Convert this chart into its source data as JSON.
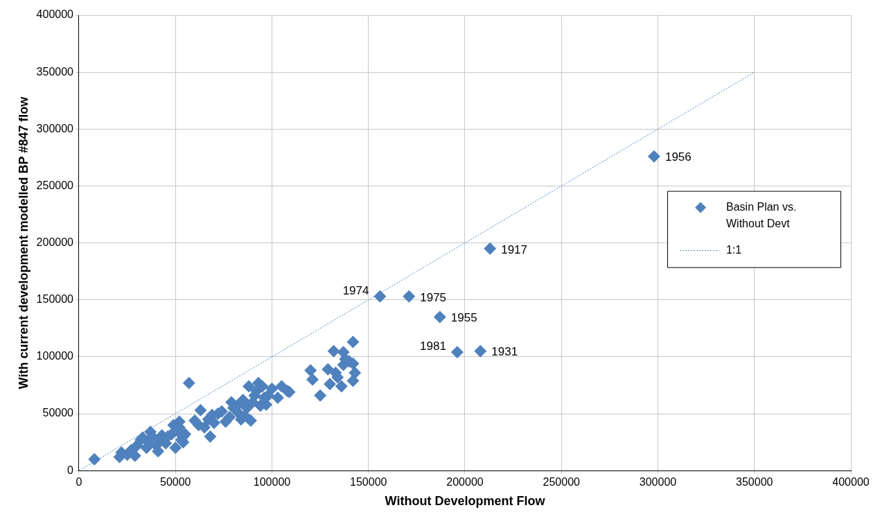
{
  "chart_data": {
    "type": "scatter",
    "xlabel": "Without Development Flow",
    "ylabel": "With current development modelled BP #847 flow",
    "xlim": [
      0,
      400000
    ],
    "xticks": [
      0,
      50000,
      100000,
      150000,
      200000,
      250000,
      300000,
      350000,
      400000
    ],
    "ylim": [
      0,
      400000
    ],
    "yticks": [
      0,
      50000,
      100000,
      150000,
      200000,
      250000,
      300000,
      350000,
      400000
    ],
    "grid": true,
    "legend": "right",
    "marker": "diamond",
    "series": [
      {
        "name": "Basin Plan vs. Without Devt",
        "color": "#4f81bd",
        "x": [
          8000,
          21000,
          22000,
          25000,
          27000,
          29000,
          30000,
          32000,
          33000,
          35000,
          36000,
          37000,
          38000,
          40000,
          41000,
          42000,
          43000,
          45000,
          46000,
          48000,
          49000,
          50000,
          51000,
          52000,
          53000,
          54000,
          55000,
          52000,
          54000,
          57000,
          60000,
          62000,
          63000,
          65000,
          67000,
          68000,
          69000,
          70000,
          72000,
          74000,
          76000,
          78000,
          79000,
          80000,
          82000,
          83000,
          84000,
          85000,
          86000,
          87000,
          88000,
          89000,
          90000,
          91000,
          92000,
          93000,
          94000,
          95000,
          96000,
          97000,
          98000,
          100000,
          103000,
          105000,
          108000,
          109000,
          120000,
          121000,
          125000,
          129000,
          130000,
          132000,
          133000,
          134000,
          136000,
          137000,
          137000,
          138000,
          140000,
          142000,
          142000,
          142000,
          143000,
          156000,
          171000,
          187000,
          196000,
          208000,
          213000,
          298000
        ],
        "values": [
          10000,
          12000,
          16000,
          14000,
          18000,
          13000,
          22000,
          27000,
          29000,
          20000,
          25000,
          34000,
          30000,
          22000,
          17000,
          27000,
          31000,
          24000,
          30000,
          32000,
          40000,
          20000,
          35000,
          43000,
          27000,
          25000,
          32000,
          38000,
          30000,
          77000,
          44000,
          40000,
          53000,
          38000,
          45000,
          30000,
          49000,
          42000,
          50000,
          52000,
          43000,
          47000,
          60000,
          55000,
          57000,
          50000,
          45000,
          62000,
          48000,
          55000,
          74000,
          44000,
          60000,
          66000,
          70000,
          77000,
          57000,
          74000,
          64000,
          58000,
          66000,
          72000,
          64000,
          74000,
          70000,
          69000,
          88000,
          80000,
          66000,
          89000,
          76000,
          105000,
          86000,
          82000,
          74000,
          104000,
          93000,
          98000,
          96000,
          79000,
          94000,
          113000,
          86000,
          153000,
          153000,
          135000,
          104000,
          105000,
          195000,
          276000
        ]
      },
      {
        "name": "1:1",
        "type": "line",
        "color": "#4f81bd",
        "marker": "none",
        "line_style": "dotted",
        "x": [
          0,
          350000
        ],
        "values": [
          0,
          350000
        ]
      }
    ],
    "annotations": [
      {
        "text": "1974",
        "x": 156000,
        "y": 153000
      },
      {
        "text": "1975",
        "x": 171000,
        "y": 153000
      },
      {
        "text": "1955",
        "x": 187000,
        "y": 135000
      },
      {
        "text": "1981",
        "x": 196000,
        "y": 104000
      },
      {
        "text": "1931",
        "x": 208000,
        "y": 105000
      },
      {
        "text": "1917",
        "x": 213000,
        "y": 195000
      },
      {
        "text": "1956",
        "x": 298000,
        "y": 276000
      }
    ]
  }
}
